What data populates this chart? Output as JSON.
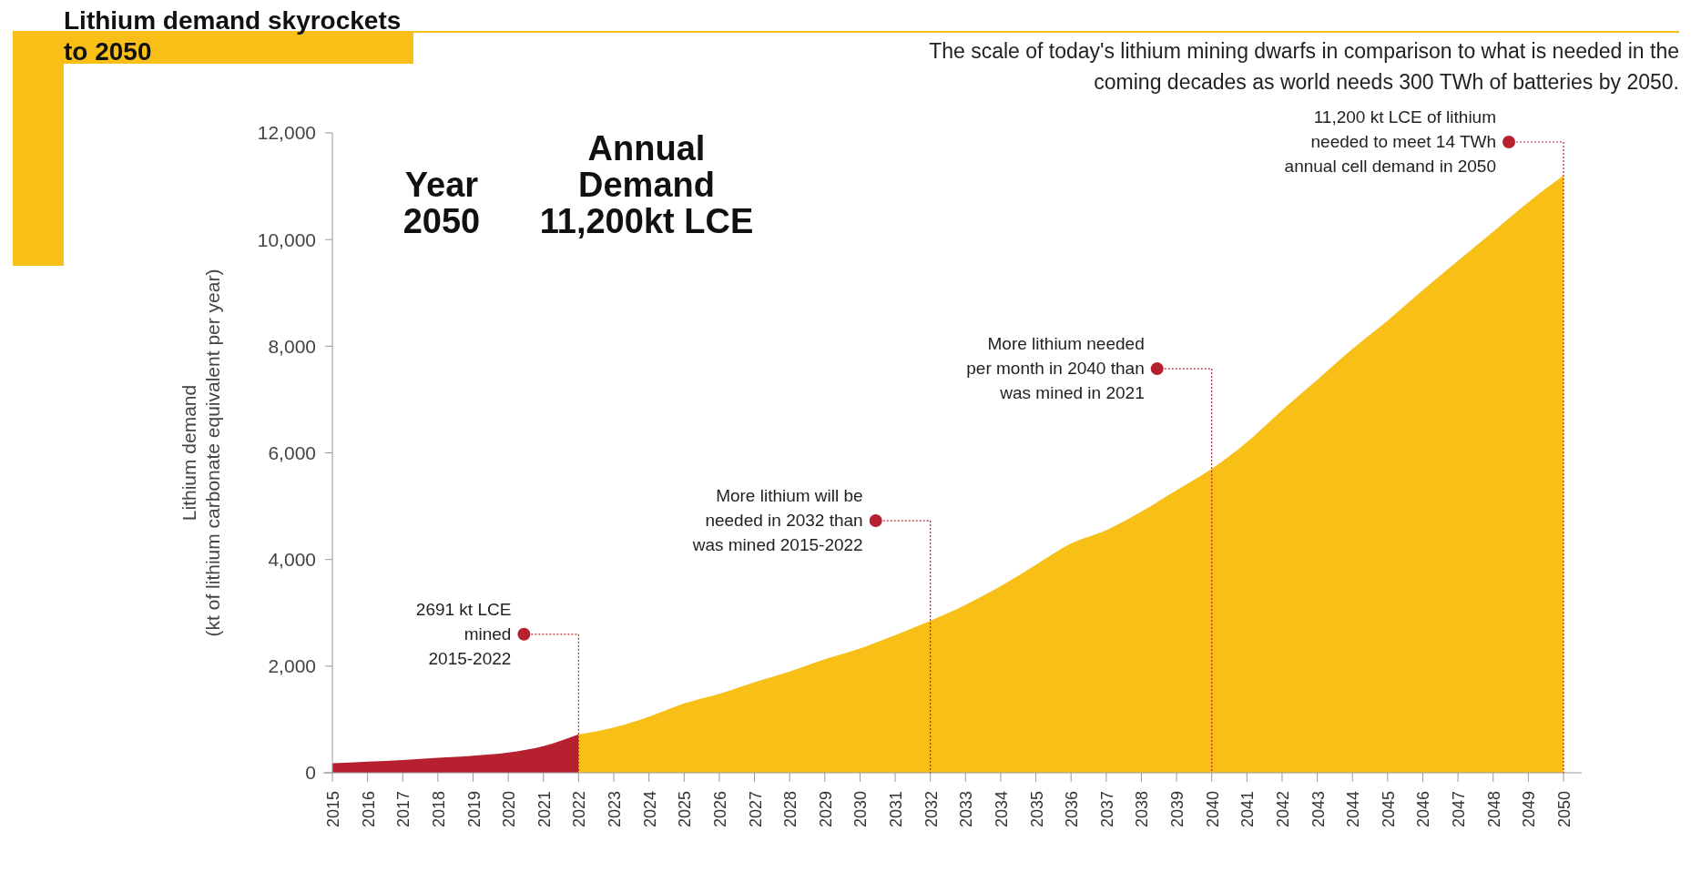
{
  "chart_data": {
    "type": "area",
    "title": "Lithium demand skyrockets to 2050",
    "subtitle": "The scale of today's lithium mining dwarfs in comparison to what is needed in the\ncoming decades as world needs 300 TWh of batteries by 2050.",
    "ylabel": "Lithium demand\n(kt of lithium carbonate equivalent per year)",
    "categories": [
      "2015",
      "2016",
      "2017",
      "2018",
      "2019",
      "2020",
      "2021",
      "2022",
      "2023",
      "2024",
      "2025",
      "2026",
      "2027",
      "2028",
      "2029",
      "2030",
      "2031",
      "2032",
      "2033",
      "2034",
      "2035",
      "2036",
      "2037",
      "2038",
      "2039",
      "2040",
      "2041",
      "2042",
      "2043",
      "2044",
      "2045",
      "2046",
      "2047",
      "2048",
      "2049",
      "2050"
    ],
    "series": [
      {
        "color": "#b7202e",
        "values": [
          180,
          210,
          240,
          280,
          320,
          380,
          500,
          720,
          null,
          null,
          null,
          null,
          null,
          null,
          null,
          null,
          null,
          null,
          null,
          null,
          null,
          null,
          null,
          null,
          null,
          null,
          null,
          null,
          null,
          null,
          null,
          null,
          null,
          null,
          null,
          null
        ]
      },
      {
        "color": "#f8bf17",
        "values": [
          null,
          null,
          null,
          null,
          null,
          null,
          null,
          720,
          850,
          1050,
          1300,
          1480,
          1700,
          1900,
          2130,
          2330,
          2580,
          2850,
          3150,
          3500,
          3900,
          4300,
          4550,
          4900,
          5300,
          5700,
          6200,
          6800,
          7370,
          7950,
          8480,
          9050,
          9600,
          10150,
          10700,
          11200
        ]
      }
    ],
    "ylim": [
      0,
      12000
    ],
    "yticks": [
      0,
      {
        "value": 2000,
        "label": "2,000"
      },
      {
        "value": 4000,
        "label": "4,000"
      },
      {
        "value": 6000,
        "label": "6,000"
      },
      {
        "value": 8000,
        "label": "8,000"
      },
      {
        "value": 10000,
        "label": "10,000"
      },
      {
        "value": 12000,
        "label": "12,000"
      }
    ],
    "annotations": [
      "Year\n2050",
      "Annual\nDemand\n11,200kt LCE"
    ],
    "ref_lines": [
      {
        "axis": "x",
        "value": "2022",
        "label": "2691 kt LCE\nmined\n2015-2022",
        "color": "#b7202e",
        "line_style": "dotted"
      },
      {
        "axis": "x",
        "value": "2032",
        "label": "More lithium will be\nneeded in 2032 than\nwas mined 2015-2022",
        "color": "#b7202e",
        "line_style": "dotted"
      },
      {
        "axis": "x",
        "value": "2040",
        "label": "More lithium needed\nper month in 2040 than\nwas mined in 2021",
        "color": "#b7202e",
        "line_style": "dotted"
      },
      {
        "axis": "x",
        "value": "2050",
        "label": "11,200 kt LCE of lithium\nneeded to meet 14 TWh\nannual cell demand in 2050",
        "color": "#b7202e",
        "line_style": "dotted"
      }
    ]
  }
}
